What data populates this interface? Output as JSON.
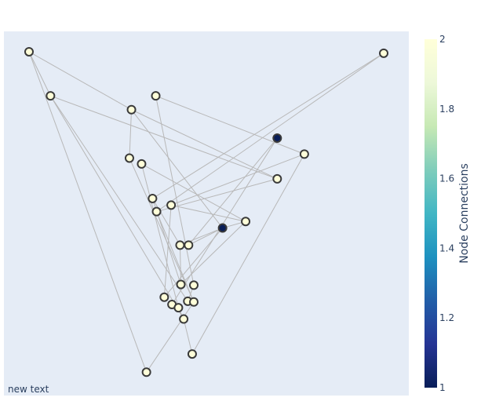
{
  "chart_data": {
    "type": "scatter",
    "title": "",
    "xlabel": "",
    "ylabel": "",
    "x_range": [
      0.0,
      1.0
    ],
    "y_range": [
      0.0,
      1.0
    ],
    "grid": false,
    "background_color": "#E5ECF6",
    "edge_color": "#b8b8b8",
    "node_outline_color": "#3a3a3a",
    "annotation": "new text",
    "colorbar": {
      "title": "Node Connections",
      "range": [
        1,
        2
      ],
      "ticks": [
        "1",
        "1.2",
        "1.4",
        "1.6",
        "1.8",
        "2"
      ],
      "colorscale": "YlGnBu"
    },
    "nodes": [
      {
        "x": 0.062,
        "y": 0.944,
        "connections": 2
      },
      {
        "x": 0.938,
        "y": 0.94,
        "connections": 2
      },
      {
        "x": 0.115,
        "y": 0.823,
        "connections": 2
      },
      {
        "x": 0.375,
        "y": 0.823,
        "connections": 2
      },
      {
        "x": 0.315,
        "y": 0.785,
        "connections": 2
      },
      {
        "x": 0.675,
        "y": 0.707,
        "connections": 1
      },
      {
        "x": 0.742,
        "y": 0.663,
        "connections": 2
      },
      {
        "x": 0.31,
        "y": 0.652,
        "connections": 2
      },
      {
        "x": 0.34,
        "y": 0.636,
        "connections": 2
      },
      {
        "x": 0.675,
        "y": 0.595,
        "connections": 2
      },
      {
        "x": 0.367,
        "y": 0.541,
        "connections": 2
      },
      {
        "x": 0.413,
        "y": 0.523,
        "connections": 2
      },
      {
        "x": 0.377,
        "y": 0.505,
        "connections": 2
      },
      {
        "x": 0.597,
        "y": 0.478,
        "connections": 2
      },
      {
        "x": 0.54,
        "y": 0.46,
        "connections": 1
      },
      {
        "x": 0.435,
        "y": 0.413,
        "connections": 2
      },
      {
        "x": 0.456,
        "y": 0.413,
        "connections": 2
      },
      {
        "x": 0.437,
        "y": 0.305,
        "connections": 2
      },
      {
        "x": 0.469,
        "y": 0.303,
        "connections": 2
      },
      {
        "x": 0.396,
        "y": 0.27,
        "connections": 2
      },
      {
        "x": 0.454,
        "y": 0.259,
        "connections": 2
      },
      {
        "x": 0.469,
        "y": 0.257,
        "connections": 2
      },
      {
        "x": 0.415,
        "y": 0.25,
        "connections": 2
      },
      {
        "x": 0.431,
        "y": 0.241,
        "connections": 2
      },
      {
        "x": 0.444,
        "y": 0.21,
        "connections": 2
      },
      {
        "x": 0.465,
        "y": 0.114,
        "connections": 2
      },
      {
        "x": 0.352,
        "y": 0.064,
        "connections": 2
      }
    ],
    "edges": [
      [
        0,
        4
      ],
      [
        0,
        2
      ],
      [
        0,
        26
      ],
      [
        1,
        10
      ],
      [
        1,
        12
      ],
      [
        2,
        9
      ],
      [
        2,
        24
      ],
      [
        2,
        20
      ],
      [
        3,
        18
      ],
      [
        3,
        6
      ],
      [
        4,
        14
      ],
      [
        4,
        7
      ],
      [
        5,
        22
      ],
      [
        5,
        16
      ],
      [
        6,
        25
      ],
      [
        6,
        11
      ],
      [
        7,
        21
      ],
      [
        8,
        23
      ],
      [
        8,
        13
      ],
      [
        9,
        12
      ],
      [
        9,
        4
      ],
      [
        10,
        15
      ],
      [
        10,
        17
      ],
      [
        11,
        13
      ],
      [
        11,
        19
      ],
      [
        13,
        14
      ],
      [
        13,
        17
      ],
      [
        14,
        15
      ],
      [
        14,
        16
      ],
      [
        14,
        19
      ],
      [
        15,
        17
      ],
      [
        18,
        20
      ],
      [
        21,
        12
      ],
      [
        23,
        24
      ],
      [
        25,
        24
      ],
      [
        26,
        21
      ]
    ]
  }
}
